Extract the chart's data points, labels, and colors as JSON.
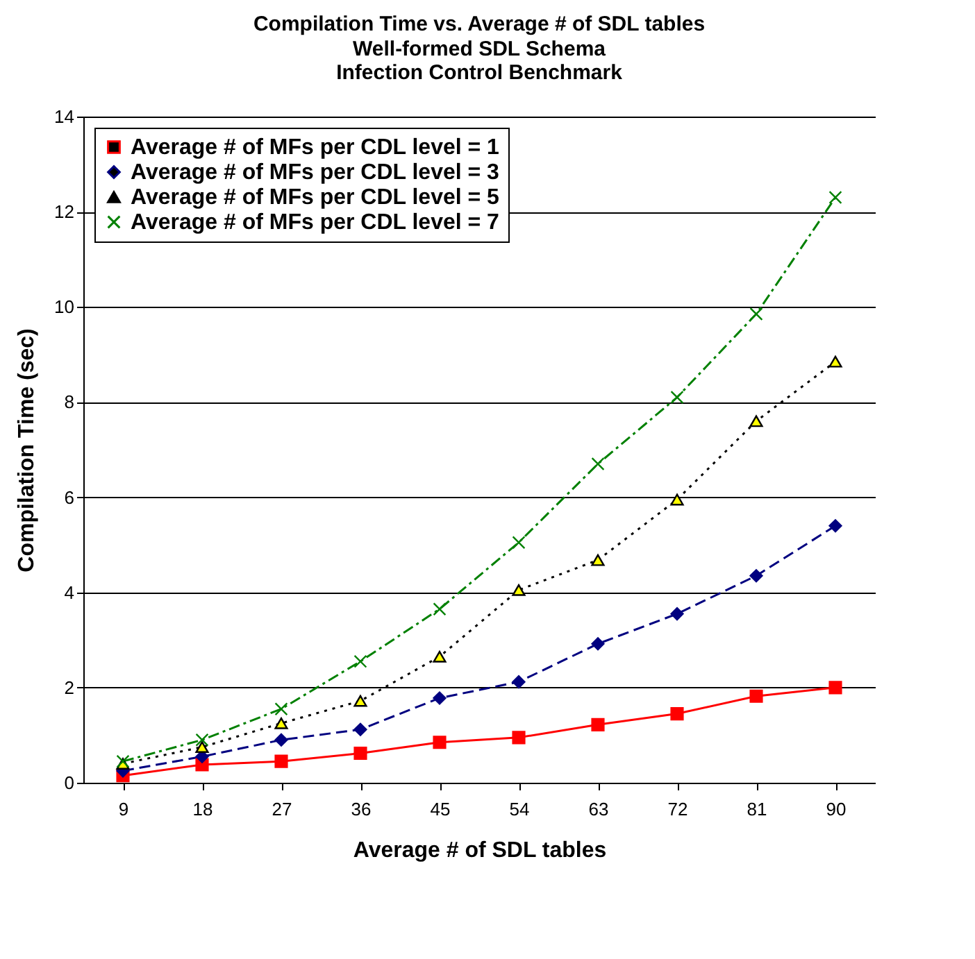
{
  "chart_data": {
    "type": "line",
    "title": "Compilation Time vs. Average # of SDL tables",
    "subtitle": "Well-formed SDL Schema\nInfection Control Benchmark",
    "xlabel": "Average # of SDL tables",
    "ylabel": "Compilation Time (sec)",
    "categories": [
      "9",
      "18",
      "27",
      "36",
      "45",
      "54",
      "63",
      "72",
      "81",
      "90"
    ],
    "ylim": [
      0,
      14
    ],
    "yticks": [
      0,
      2,
      4,
      6,
      8,
      10,
      12,
      14
    ],
    "grid": "y",
    "legend": "top left",
    "series": [
      {
        "name": "Average # of MFs per CDL level = 1",
        "color": "#ff0000",
        "marker": "square",
        "line_style": "solid",
        "values": [
          0.15,
          0.38,
          0.45,
          0.62,
          0.85,
          0.95,
          1.22,
          1.45,
          1.82,
          2.0
        ]
      },
      {
        "name": "Average # of MFs per CDL level = 3",
        "color": "#000080",
        "marker": "diamond",
        "line_style": "dashed",
        "values": [
          0.25,
          0.55,
          0.9,
          1.12,
          1.78,
          2.12,
          2.92,
          3.55,
          4.35,
          5.4
        ]
      },
      {
        "name": "Average # of MFs per CDL level = 5",
        "color": "#000000",
        "colors": [
          "#ffff00",
          "#ffff00",
          "#ffff00",
          "#ffff00",
          "#ffff00",
          "#ffff00",
          "#ffff00",
          "#ffff00",
          "#ffff00",
          "#ffff00"
        ],
        "marker": "triangle",
        "line_style": "dotted",
        "values": [
          0.4,
          0.75,
          1.25,
          1.72,
          2.65,
          4.05,
          4.68,
          5.95,
          7.6,
          8.85
        ]
      },
      {
        "name": "Average # of MFs per CDL level = 7",
        "color": "#008000",
        "marker": "cross",
        "line_style": "dashdot",
        "values": [
          0.45,
          0.9,
          1.55,
          2.55,
          3.65,
          5.05,
          6.7,
          8.1,
          9.85,
          12.3
        ]
      }
    ]
  }
}
